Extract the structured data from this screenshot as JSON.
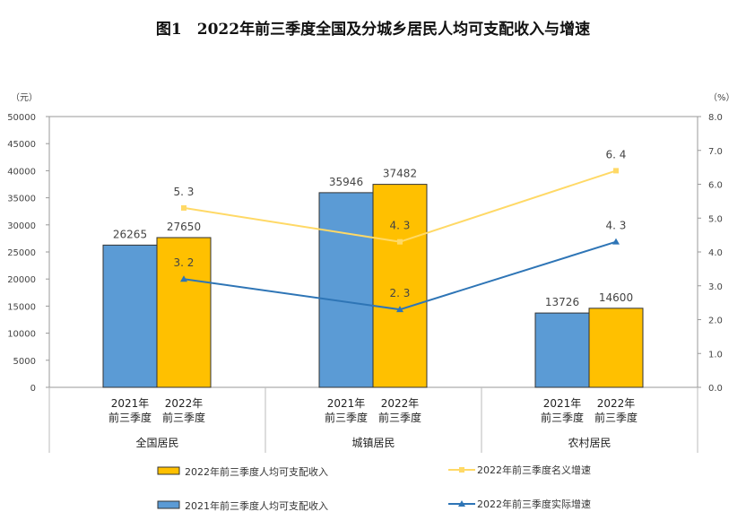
{
  "title": "图1　2022年前三季度全国及分城乡居民人均可支配收入与增速",
  "chart_data": {
    "type": "bar+line",
    "title": "图1　2022年前三季度全国及分城乡居民人均可支配收入与增速",
    "left_unit": "（元）",
    "right_unit": "（%）",
    "ylim": [
      0,
      50000
    ],
    "y_ticks": [
      "0",
      "5000",
      "10000",
      "15000",
      "20000",
      "25000",
      "30000",
      "35000",
      "40000",
      "45000",
      "50000"
    ],
    "y2lim": [
      0,
      8
    ],
    "y2_ticks": [
      "0.0",
      "1.0",
      "2.0",
      "3.0",
      "4.0",
      "5.0",
      "6.0",
      "7.0",
      "8.0"
    ],
    "groups": [
      "全国居民",
      "城镇居民",
      "农村居民"
    ],
    "sub_categories": [
      [
        "2021年",
        "前三季度"
      ],
      [
        "2022年",
        "前三季度"
      ]
    ],
    "bar_series": [
      {
        "name": "2021年前三季度人均可支配收入",
        "color": "#5b9bd5",
        "values": [
          26265,
          35946,
          13726
        ]
      },
      {
        "name": "2022年前三季度人均可支配收入",
        "color": "#ffc000",
        "values": [
          27650,
          37482,
          14600
        ]
      }
    ],
    "line_series": [
      {
        "name": "2022年前三季度名义增速",
        "color": "#ffd966",
        "marker": "square",
        "values": [
          5.3,
          4.3,
          6.4
        ]
      },
      {
        "name": "2022年前三季度实际增速",
        "color": "#2e75b6",
        "marker": "triangle",
        "values": [
          3.2,
          2.3,
          4.3
        ]
      }
    ],
    "legend": "bottom"
  }
}
